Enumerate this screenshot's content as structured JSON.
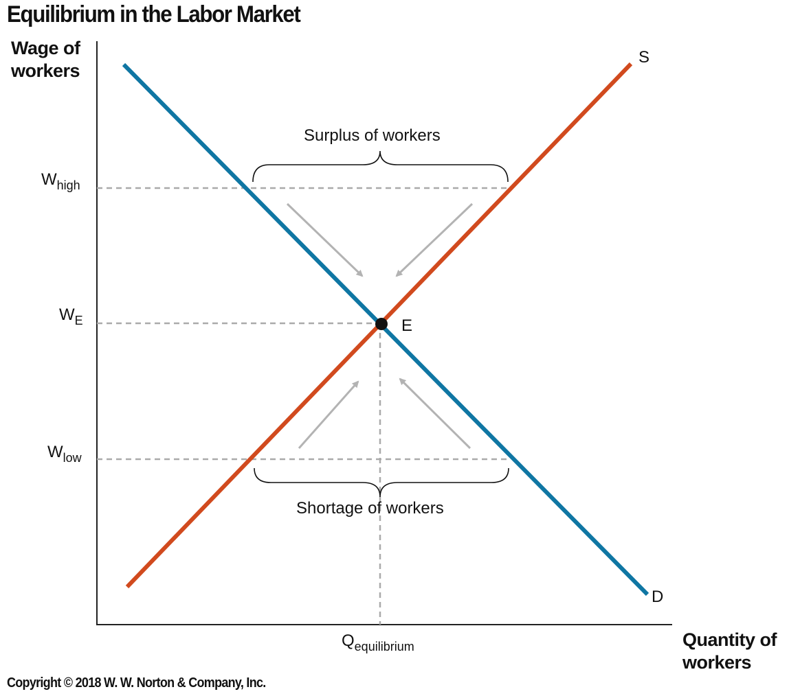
{
  "title": "Equilibrium in the Labor Market",
  "axes": {
    "y_label_line1": "Wage of",
    "y_label_line2": "workers",
    "x_label_line1": "Quantity of",
    "x_label_line2": "workers"
  },
  "wage_levels": {
    "high": {
      "main": "W",
      "sub": "high"
    },
    "equilibrium": {
      "main": "W",
      "sub": "E"
    },
    "low": {
      "main": "W",
      "sub": "low"
    }
  },
  "quantity_label": {
    "main": "Q",
    "sub": "equilibrium"
  },
  "curves": {
    "supply": {
      "label": "S",
      "color": "#d14a1e"
    },
    "demand": {
      "label": "D",
      "color": "#0f76a3"
    }
  },
  "equilibrium_point_label": "E",
  "annotations": {
    "surplus": "Surplus of workers",
    "shortage": "Shortage of workers"
  },
  "guide_color": "#aaaaaa",
  "copyright": "Copyright © 2018 W. W. Norton & Company, Inc."
}
